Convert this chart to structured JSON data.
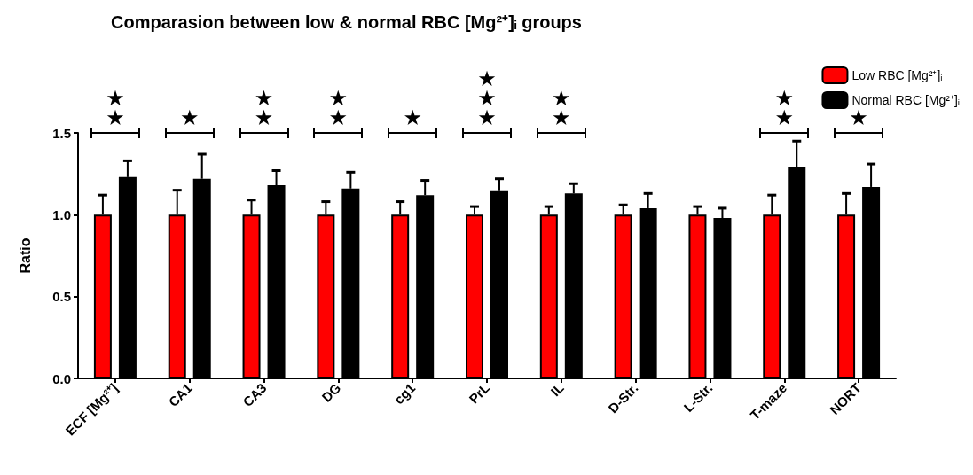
{
  "chart_data": {
    "type": "bar",
    "title": "Comparasion between low & normal RBC [Mg²⁺]ᵢ groups",
    "ylabel": "Ratio",
    "categories": [
      "ECF [Mg²⁺]",
      "CA1",
      "CA3",
      "DG",
      "cg1",
      "PrL",
      "IL",
      "D-Str.",
      "L-Str.",
      "T-maze",
      "NORT"
    ],
    "series": [
      {
        "name": "Low RBC [Mg²⁺]ᵢ",
        "color": "#ff0000",
        "values": [
          1,
          1,
          1,
          1,
          1,
          1,
          1,
          1,
          1,
          1,
          1
        ],
        "errors": [
          [
            1,
            1.12
          ],
          [
            1,
            1.15
          ],
          [
            1,
            1.09
          ],
          [
            1,
            1.08
          ],
          [
            1,
            1.08
          ],
          [
            1,
            1.05
          ],
          [
            1,
            1.05
          ],
          [
            1,
            1.06
          ],
          [
            1,
            1.05
          ],
          [
            1,
            1.12
          ],
          [
            1,
            1.13
          ]
        ]
      },
      {
        "name": "Normal RBC [Mg²⁺]ᵢ",
        "color": "#000000",
        "values": [
          1.23,
          1.22,
          1.18,
          1.16,
          1.12,
          1.15,
          1.13,
          1.04,
          0.98,
          1.29,
          1.17
        ],
        "errors": [
          [
            1.23,
            1.33
          ],
          [
            1.22,
            1.37
          ],
          [
            1.18,
            1.27
          ],
          [
            1.16,
            1.26
          ],
          [
            1.12,
            1.21
          ],
          [
            1.15,
            1.22
          ],
          [
            1.13,
            1.19
          ],
          [
            1.04,
            1.13
          ],
          [
            0.98,
            1.04
          ],
          [
            1.29,
            1.45
          ],
          [
            1.17,
            1.31
          ]
        ]
      }
    ],
    "ylim": [
      0,
      1.5
    ],
    "yticks": [
      {
        "value": 0,
        "label": "0.0"
      },
      {
        "value": 0.5,
        "label": "0.5"
      },
      {
        "value": 1,
        "label": "1.0"
      },
      {
        "value": 1.5,
        "label": "1.5"
      }
    ],
    "grid": false,
    "legend": "top right",
    "annotations": [
      "★★",
      "★",
      "★★",
      "★★",
      "★",
      "★★★",
      "★★",
      null,
      null,
      "★★",
      "★"
    ]
  }
}
